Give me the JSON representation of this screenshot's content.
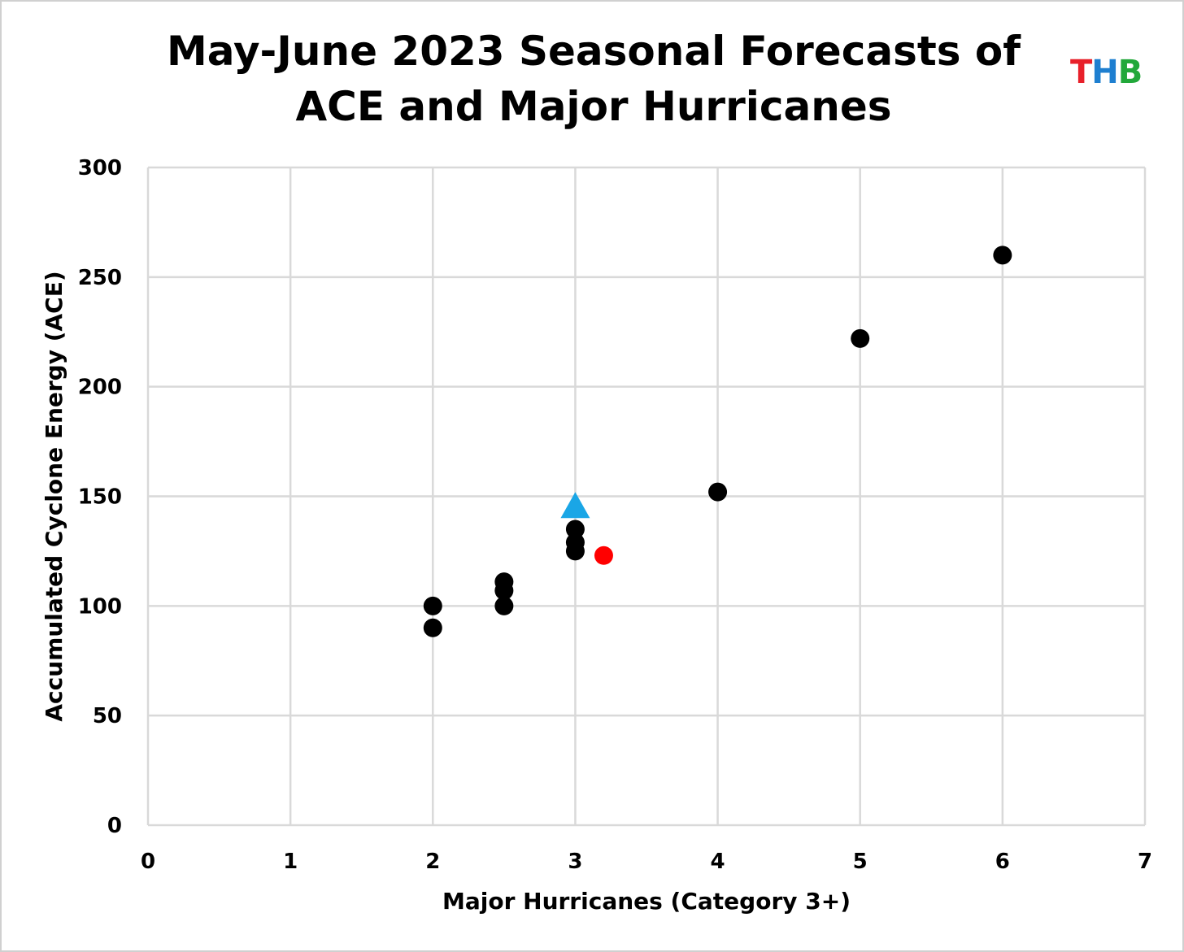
{
  "chart_data": {
    "type": "scatter",
    "title_line1": "May-June 2023 Seasonal Forecasts of",
    "title_line2": "ACE and Major Hurricanes",
    "xlabel": "Major Hurricanes (Category 3+)",
    "ylabel": "Accumulated Cyclone Energy (ACE)",
    "xlim": [
      0,
      7
    ],
    "ylim": [
      0,
      300
    ],
    "x_ticks": [
      0,
      1,
      2,
      3,
      4,
      5,
      6,
      7
    ],
    "y_ticks": [
      0,
      50,
      100,
      150,
      200,
      250,
      300
    ],
    "x_tick_labels": [
      "0",
      "1",
      "2",
      "3",
      "4",
      "5",
      "6",
      "7"
    ],
    "y_tick_labels": [
      "0",
      "50",
      "100",
      "150",
      "200",
      "250",
      "300"
    ],
    "grid": true,
    "legend": "none",
    "series": [
      {
        "marker": "circle",
        "color": "#000000",
        "points": [
          {
            "x": 2,
            "y": 100
          },
          {
            "x": 2,
            "y": 90
          },
          {
            "x": 2.5,
            "y": 111
          },
          {
            "x": 2.5,
            "y": 107
          },
          {
            "x": 2.5,
            "y": 100
          },
          {
            "x": 3,
            "y": 135
          },
          {
            "x": 3,
            "y": 129
          },
          {
            "x": 3,
            "y": 125
          },
          {
            "x": 4,
            "y": 152
          },
          {
            "x": 5,
            "y": 222
          },
          {
            "x": 6,
            "y": 260
          }
        ]
      },
      {
        "marker": "circle",
        "color": "#ff0000",
        "points": [
          {
            "x": 3.2,
            "y": 123
          }
        ]
      },
      {
        "marker": "triangle",
        "color": "#1aa6e6",
        "points": [
          {
            "x": 3,
            "y": 146
          }
        ]
      }
    ]
  },
  "logo": {
    "letters": [
      {
        "char": "T",
        "color": "#e8202a"
      },
      {
        "char": "H",
        "color": "#1e7fd0"
      },
      {
        "char": "B",
        "color": "#22a83a"
      }
    ]
  },
  "colors": {
    "grid": "#d9d9d9",
    "text": "#000000"
  }
}
